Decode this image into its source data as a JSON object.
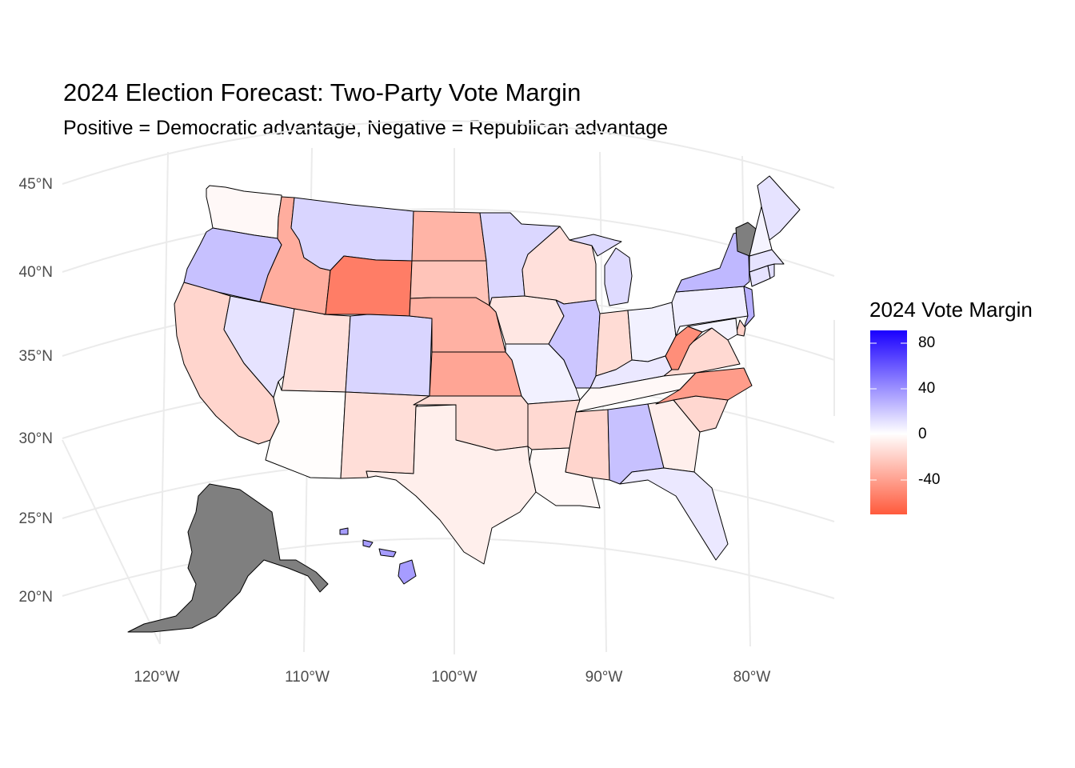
{
  "title": "2024 Election Forecast: Two-Party Vote Margin",
  "subtitle": "Positive = Democratic advantage, Negative = Republican advantage",
  "axes": {
    "lat_labels": [
      "45°N",
      "40°N",
      "35°N",
      "30°N",
      "25°N",
      "20°N"
    ],
    "lon_labels": [
      "120°W",
      "110°W",
      "100°W",
      "90°W",
      "80°W"
    ]
  },
  "legend": {
    "title": "2024 Vote Margin",
    "ticks": [
      "80",
      "40",
      "0",
      "-40"
    ],
    "range": [
      -70,
      90
    ],
    "colors": {
      "low": "#ff5a3c",
      "mid": "#ffffff",
      "high": "#1a00ff",
      "missing": "#7f7f7f"
    }
  },
  "chart_data": {
    "type": "choropleth",
    "title": "2024 Election Forecast: Two-Party Vote Margin",
    "subtitle": "Positive = Democratic advantage, Negative = Republican advantage",
    "fill_label": "2024 Vote Margin",
    "states": [
      {
        "state": "WA",
        "margin": -3
      },
      {
        "state": "OR",
        "margin": 22
      },
      {
        "state": "CA",
        "margin": -18
      },
      {
        "state": "NV",
        "margin": 10
      },
      {
        "state": "ID",
        "margin": -35
      },
      {
        "state": "MT",
        "margin": 15
      },
      {
        "state": "WY",
        "margin": -55
      },
      {
        "state": "UT",
        "margin": -13
      },
      {
        "state": "AZ",
        "margin": -1
      },
      {
        "state": "CO",
        "margin": 15
      },
      {
        "state": "NM",
        "margin": -14
      },
      {
        "state": "ND",
        "margin": -32
      },
      {
        "state": "SD",
        "margin": -25
      },
      {
        "state": "NE",
        "margin": -33
      },
      {
        "state": "KS",
        "margin": -38
      },
      {
        "state": "OK",
        "margin": -15
      },
      {
        "state": "TX",
        "margin": -7
      },
      {
        "state": "MN",
        "margin": 14
      },
      {
        "state": "IA",
        "margin": -10
      },
      {
        "state": "MO",
        "margin": 5
      },
      {
        "state": "AR",
        "margin": -16
      },
      {
        "state": "LA",
        "margin": -3
      },
      {
        "state": "WI",
        "margin": -13
      },
      {
        "state": "IL",
        "margin": 20
      },
      {
        "state": "MI",
        "margin": 13
      },
      {
        "state": "IN",
        "margin": -15
      },
      {
        "state": "OH",
        "margin": 5
      },
      {
        "state": "KY",
        "margin": 8
      },
      {
        "state": "TN",
        "margin": -3
      },
      {
        "state": "MS",
        "margin": -18
      },
      {
        "state": "AL",
        "margin": 22
      },
      {
        "state": "GA",
        "margin": -7
      },
      {
        "state": "FL",
        "margin": 8
      },
      {
        "state": "SC",
        "margin": -17
      },
      {
        "state": "NC",
        "margin": -42
      },
      {
        "state": "VA",
        "margin": -16
      },
      {
        "state": "WV",
        "margin": -48
      },
      {
        "state": "PA",
        "margin": 6
      },
      {
        "state": "NY",
        "margin": 25
      },
      {
        "state": "NJ",
        "margin": 28
      },
      {
        "state": "DE",
        "margin": -20
      },
      {
        "state": "MD",
        "margin": 4
      },
      {
        "state": "CT",
        "margin": 10
      },
      {
        "state": "RI",
        "margin": 12
      },
      {
        "state": "MA",
        "margin": 10
      },
      {
        "state": "VT",
        "margin": null
      },
      {
        "state": "NH",
        "margin": 4
      },
      {
        "state": "ME",
        "margin": 10
      },
      {
        "state": "AK",
        "margin": null
      },
      {
        "state": "HI",
        "margin": 35
      }
    ]
  }
}
